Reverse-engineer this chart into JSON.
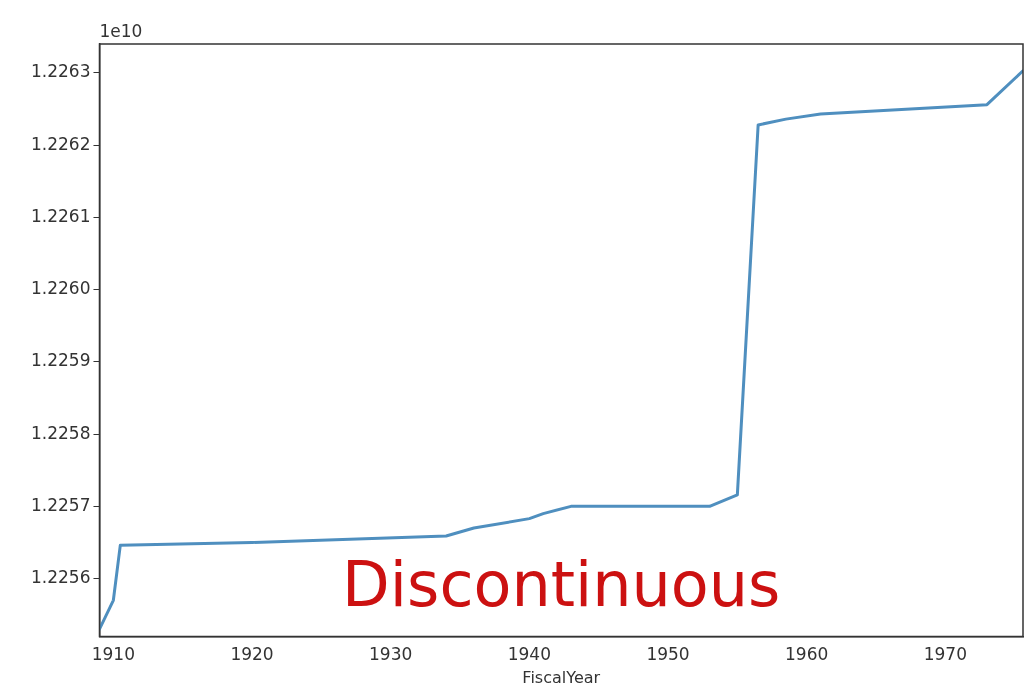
{
  "chart_data": {
    "type": "line",
    "xlabel": "FiscalYear",
    "annotations": [
      "1e10",
      "Discontinuous"
    ],
    "series": [
      {
        "color": "#4f8fbf",
        "x": [
          1909,
          1910,
          1910.5,
          1920,
          1934,
          1936,
          1940,
          1941,
          1943,
          1953,
          1955,
          1956.5,
          1958.5,
          1961,
          1973,
          1975.6
        ],
        "values": [
          1.22553,
          1.22557,
          1.225646,
          1.22565,
          1.225659,
          1.22567,
          1.225683,
          1.22569,
          1.2257,
          1.2257,
          1.225716,
          1.226228,
          1.226236,
          1.226243,
          1.226256,
          1.226303
        ]
      }
    ],
    "xlim": [
      1909,
      1975.6
    ],
    "xticks": [
      1910,
      1920,
      1930,
      1940,
      1950,
      1960,
      1970
    ],
    "ylim": [
      1.22552,
      1.22634
    ],
    "yticks": [
      {
        "value": 1.2256,
        "label": "1.2256"
      },
      1.2257,
      1.2258,
      1.2259,
      {
        "value": 1.226,
        "label": "1.2260"
      },
      1.2261,
      1.2262,
      1.2263
    ],
    "grid": false,
    "legend": false,
    "marker": "none",
    "line_style": "solid"
  }
}
